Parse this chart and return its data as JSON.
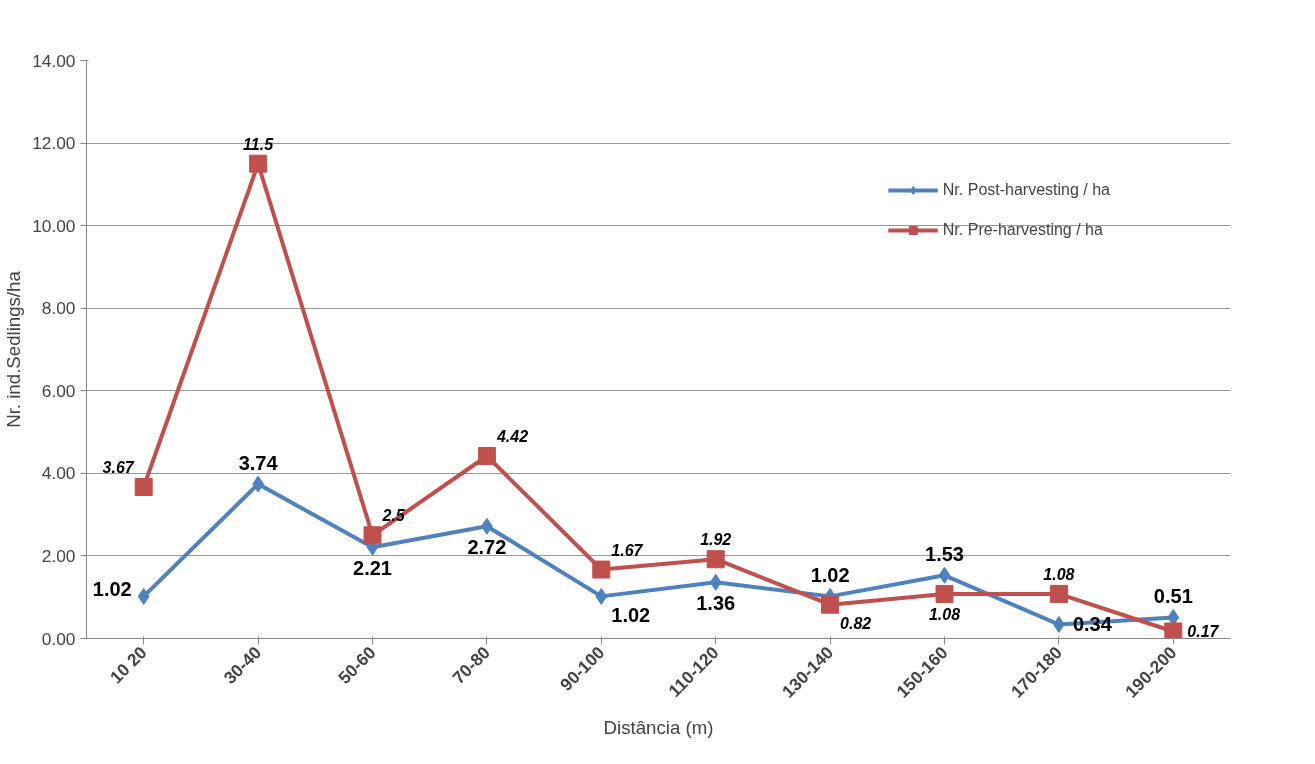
{
  "chart_data": {
    "type": "line",
    "xlabel": "Distância (m)",
    "ylabel": "Nr. ind.Sedlings/ha",
    "categories": [
      "10 20",
      "30-40",
      "50-60",
      "70-80",
      "90-100",
      "110-120",
      "130-140",
      "150-160",
      "170-180",
      "190-200"
    ],
    "ylim": [
      0,
      14
    ],
    "yticks": [
      {
        "value": 0,
        "label": "0.00"
      },
      {
        "value": 2,
        "label": "2.00"
      },
      {
        "value": 4,
        "label": "4.00"
      },
      {
        "value": 6,
        "label": "6.00"
      },
      {
        "value": 8,
        "label": "8.00"
      },
      {
        "value": 10,
        "label": "10.00"
      },
      {
        "value": 12,
        "label": "12.00"
      },
      {
        "value": 14,
        "label": "14.00"
      }
    ],
    "grid": "y",
    "legend": "top right",
    "line_style": "solid",
    "series": [
      {
        "name": "Nr. Post-harvesting / ha",
        "color": "#4f81bd",
        "marker": "diamond",
        "values": [
          1.02,
          3.74,
          2.21,
          2.72,
          1.02,
          1.36,
          1.02,
          1.53,
          0.34,
          0.51
        ],
        "value_labels": [
          "1.02",
          "3.74",
          "2.21",
          "2.72",
          "1.02",
          "1.36",
          "1.02",
          "1.53",
          "0.34",
          "0.51"
        ]
      },
      {
        "name": "Nr. Pre-harvesting / ha",
        "color": "#c0504d",
        "marker": "square",
        "values": [
          3.67,
          11.5,
          2.5,
          4.42,
          1.67,
          1.92,
          0.82,
          1.08,
          1.08,
          0.17
        ],
        "value_labels": [
          "3.67",
          "11.5",
          "2.5",
          "4.42",
          "1.67",
          "1.92",
          "0.82",
          "1.08",
          "1.08",
          "0.17"
        ]
      }
    ]
  }
}
